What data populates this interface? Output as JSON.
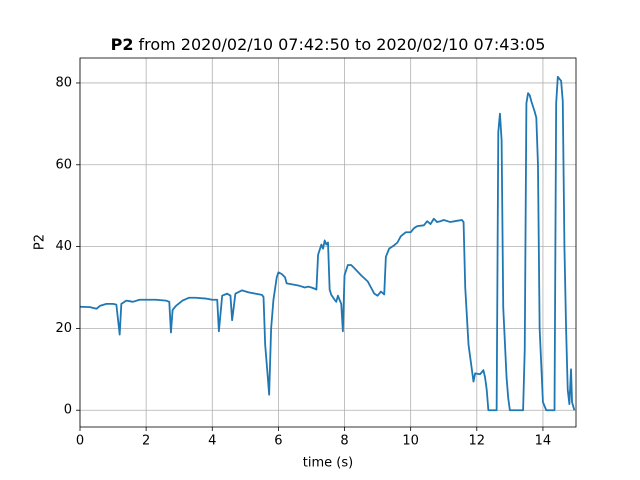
{
  "chart_data": {
    "type": "line",
    "title_series": "P2",
    "title": "from 2020/02/10 07:42:50 to 2020/02/10 07:43:05",
    "xlabel": "time (s)",
    "ylabel": "P2",
    "color": "#1f77b4",
    "grid": true,
    "xlim": [
      0,
      15
    ],
    "ylim": [
      -4.1,
      86.1
    ],
    "xticks": [
      0,
      2,
      4,
      6,
      8,
      10,
      12,
      14
    ],
    "yticks": [
      0,
      20,
      40,
      60,
      80
    ],
    "x": [
      0,
      0.3,
      0.5,
      0.6,
      0.8,
      1.0,
      1.1,
      1.2,
      1.25,
      1.4,
      1.6,
      1.8,
      2.0,
      2.3,
      2.6,
      2.7,
      2.75,
      2.8,
      2.9,
      3.1,
      3.3,
      3.5,
      3.8,
      4.0,
      4.15,
      4.2,
      4.3,
      4.45,
      4.55,
      4.6,
      4.7,
      4.9,
      5.1,
      5.3,
      5.5,
      5.55,
      5.6,
      5.68,
      5.72,
      5.78,
      5.85,
      5.95,
      6.0,
      6.1,
      6.2,
      6.25,
      6.4,
      6.6,
      6.8,
      6.9,
      7.0,
      7.1,
      7.15,
      7.2,
      7.3,
      7.35,
      7.4,
      7.45,
      7.5,
      7.55,
      7.6,
      7.7,
      7.75,
      7.8,
      7.9,
      7.95,
      8.0,
      8.1,
      8.2,
      8.3,
      8.5,
      8.7,
      8.8,
      8.9,
      9.0,
      9.1,
      9.2,
      9.25,
      9.35,
      9.5,
      9.6,
      9.7,
      9.85,
      10.0,
      10.1,
      10.2,
      10.4,
      10.5,
      10.6,
      10.7,
      10.8,
      10.9,
      11.0,
      11.2,
      11.4,
      11.55,
      11.6,
      11.65,
      11.75,
      11.85,
      11.9,
      11.95,
      12.1,
      12.2,
      12.25,
      12.3,
      12.35,
      12.55,
      12.6,
      12.65,
      12.7,
      12.75,
      12.8,
      12.9,
      12.95,
      13.0,
      13.4,
      13.45,
      13.5,
      13.55,
      13.6,
      13.65,
      13.75,
      13.8,
      13.85,
      13.9,
      14.0,
      14.1,
      14.35,
      14.4,
      14.45,
      14.55,
      14.6,
      14.65,
      14.7,
      14.75,
      14.8,
      14.85,
      14.88,
      14.95
    ],
    "values": [
      25.3,
      25.2,
      24.8,
      25.5,
      26,
      26,
      25.8,
      18.5,
      26,
      26.8,
      26.5,
      27,
      27,
      27,
      26.8,
      26.5,
      19,
      24.5,
      25.5,
      26.8,
      27.5,
      27.5,
      27.3,
      27,
      27,
      19.3,
      28,
      28.5,
      28,
      22,
      28.5,
      29.3,
      28.8,
      28.5,
      28.2,
      27.7,
      16,
      8,
      3.8,
      20,
      27,
      32.5,
      33.7,
      33.3,
      32.5,
      31,
      30.8,
      30.5,
      30,
      30.2,
      30,
      29.7,
      29.5,
      38,
      40.5,
      39.5,
      41.5,
      40.5,
      41,
      29.5,
      28.2,
      27,
      26.5,
      28,
      26,
      19.3,
      33,
      35.5,
      35.5,
      34.7,
      33,
      31.5,
      30,
      28.5,
      28,
      29,
      28.3,
      37.5,
      39.5,
      40.3,
      41,
      42.5,
      43.5,
      43.5,
      44.5,
      45,
      45.2,
      46.2,
      45.5,
      46.8,
      46,
      46.2,
      46.5,
      46,
      46.3,
      46.5,
      46,
      30,
      16,
      10,
      7,
      9,
      8.8,
      9.8,
      8,
      5,
      0,
      0,
      0,
      68,
      72.5,
      66,
      25,
      8,
      3,
      0,
      0,
      15,
      75,
      77.5,
      77,
      75.5,
      73,
      71.5,
      60,
      20,
      2,
      0,
      0,
      75,
      81.5,
      80.5,
      75.5,
      40,
      20,
      5,
      1.5,
      10,
      2,
      0
    ]
  }
}
